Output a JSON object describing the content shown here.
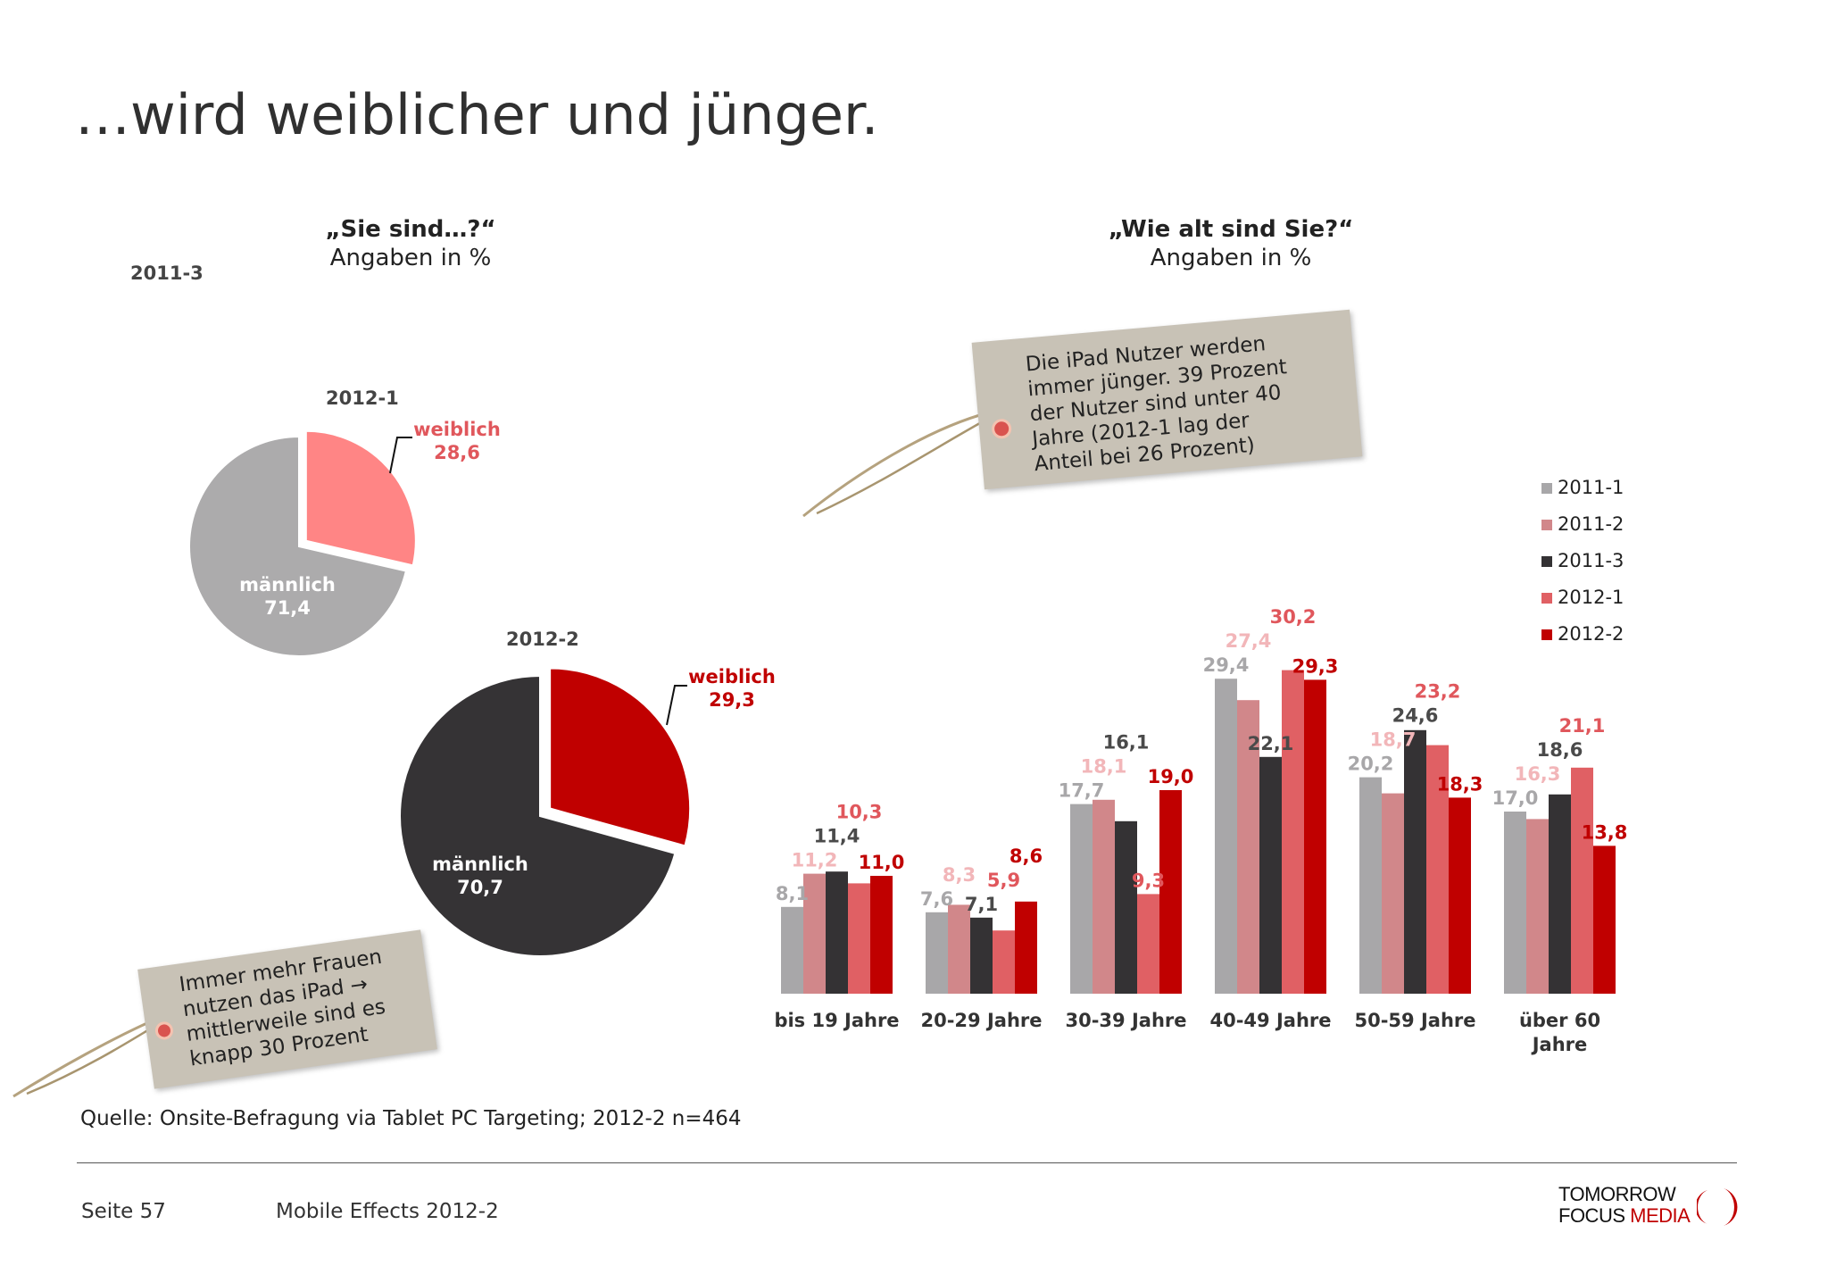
{
  "page": {
    "title": "…wird weiblicher und jünger.",
    "source": "Quelle: Onsite-Befragung via Tablet PC Targeting; 2012-2 n=464",
    "footer": {
      "page": "Seite 57",
      "report": "Mobile Effects 2012-2"
    },
    "logo": {
      "line1": "TOMORROW",
      "line2a": "FOCUS",
      "line2b": "MEDIA"
    }
  },
  "gender": {
    "question": "„Sie sind…?“",
    "subtitle": "Angaben in %",
    "extra_label": "2011-3",
    "tag_text": [
      "Immer mehr Frauen",
      "nutzen das iPad →",
      "mittlerweile sind es",
      "knapp 30 Prozent"
    ]
  },
  "age": {
    "question": "„Wie alt sind Sie?“",
    "subtitle": "Angaben in %",
    "tag_text": [
      "Die iPad Nutzer werden",
      "immer jünger. 39 Prozent",
      "der Nutzer sind unter 40",
      "Jahre (2012-1 lag  der",
      "Anteil bei 26 Prozent)"
    ]
  },
  "chart_data": [
    {
      "type": "pie",
      "title": "2012-1",
      "slices": [
        {
          "label": "weiblich",
          "value": 28.6,
          "value_label": "28,6",
          "color": "#ff8585",
          "label_color": "#e0575c"
        },
        {
          "label": "männlich",
          "value": 71.4,
          "value_label": "71,4",
          "color": "#acabac",
          "label_color": "#ffffff"
        }
      ]
    },
    {
      "type": "pie",
      "title": "2012-2",
      "slices": [
        {
          "label": "weiblich",
          "value": 29.3,
          "value_label": "29,3",
          "color": "#c00000",
          "label_color": "#c00000"
        },
        {
          "label": "männlich",
          "value": 70.7,
          "value_label": "70,7",
          "color": "#353335",
          "label_color": "#ffffff"
        }
      ]
    },
    {
      "type": "bar",
      "categories": [
        "bis 19 Jahre",
        "20-29 Jahre",
        "30-39 Jahre",
        "40-49 Jahre",
        "50-59 Jahre",
        "über 60 Jahre"
      ],
      "legend_position": "right",
      "grid": false,
      "series": [
        {
          "name": "2011-1",
          "color": "#a8a7a9",
          "label_color": "#a8a7a9",
          "values": [
            8.1,
            7.6,
            17.7,
            29.4,
            20.2,
            17.0
          ],
          "labels": [
            "8,1",
            "7,6",
            "17,7",
            "29,4",
            "20,2",
            "17,0"
          ]
        },
        {
          "name": "2011-2",
          "color": "#d1878a",
          "label_color": "#f2b6b9",
          "values": [
            11.2,
            8.3,
            18.1,
            27.4,
            18.7,
            16.3
          ],
          "labels": [
            "11,2",
            "8,3",
            "18,1",
            "27,4",
            "18,7",
            "16,3"
          ]
        },
        {
          "name": "2011-3",
          "color": "#343234",
          "label_color": "#4a4a4a",
          "values": [
            11.4,
            7.1,
            16.1,
            22.1,
            24.6,
            18.6
          ],
          "labels": [
            "11,4",
            "7,1",
            "16,1",
            "22,1",
            "24,6",
            "18,6"
          ]
        },
        {
          "name": "2012-1",
          "color": "#e06064",
          "label_color": "#e0575c",
          "values": [
            10.3,
            5.9,
            9.3,
            30.2,
            23.2,
            21.1
          ],
          "labels": [
            "10,3",
            "5,9",
            "9,3",
            "30,2",
            "23,2",
            "21,1"
          ]
        },
        {
          "name": "2012-2",
          "color": "#c00000",
          "label_color": "#c00000",
          "values": [
            11.0,
            8.6,
            19.0,
            29.3,
            18.3,
            13.8
          ],
          "labels": [
            "11,0",
            "8,6",
            "19,0",
            "29,3",
            "18,3",
            "13,8"
          ]
        }
      ]
    }
  ]
}
